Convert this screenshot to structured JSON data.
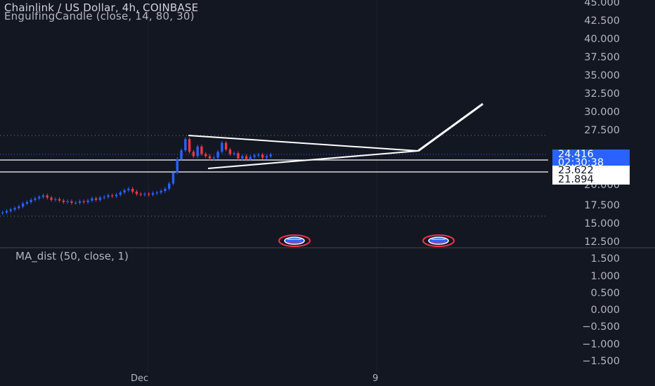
{
  "legend": {
    "title": "Chainlink / US Dollar, 4h, COINBASE",
    "indicator": "EngulfingCandle (close, 14, 80, 30)",
    "sub_indicator": "MA_dist (50, close, 1)"
  },
  "price_axis": {
    "labels": [
      "45.000",
      "42.500",
      "40.000",
      "37.500",
      "35.000",
      "32.500",
      "30.000",
      "27.500",
      "20.000",
      "17.500",
      "15.000",
      "12.500"
    ]
  },
  "sub_axis": {
    "labels": [
      "1.500",
      "1.000",
      "0.500",
      "0.000",
      "−0.500",
      "−1.000",
      "−1.500"
    ]
  },
  "price_tags": {
    "last_price": "24.416",
    "countdown": "02:30:38",
    "level_upper": "23.622",
    "level_lower": "21.894"
  },
  "time_axis": {
    "labels": [
      "Dec",
      "9"
    ]
  },
  "colors": {
    "up": "#2962ff",
    "down": "#f23645",
    "background": "#131722",
    "drawing": "#ffffff"
  },
  "icons": [
    "us-flag-event-icon",
    "us-flag-event-icon"
  ],
  "chart_data": {
    "type": "candlestick",
    "ylim": [
      12.5,
      45
    ],
    "series": [
      {
        "name": "",
        "close": [
          16.6,
          16.8,
          17.0,
          17.2,
          17.4,
          17.8,
          18.0,
          18.3,
          18.5,
          18.7,
          18.9,
          18.6,
          18.3,
          18.4,
          18.2,
          18.0,
          18.1,
          17.9,
          17.9,
          18.1,
          18.0,
          18.2,
          18.5,
          18.3,
          18.6,
          18.7,
          18.9,
          18.8,
          19.0,
          19.3,
          19.6,
          19.8,
          19.4,
          19.1,
          19.0,
          19.1,
          19.0,
          19.2,
          19.3,
          19.5,
          19.8,
          20.5,
          22.0,
          23.8,
          25.0,
          26.5,
          24.8,
          24.2,
          25.5,
          24.5,
          24.2,
          23.9,
          24.0,
          24.8,
          26.0,
          25.1,
          24.5,
          24.6,
          23.9,
          24.2,
          23.8,
          24.1,
          24.3,
          24.4,
          24.0,
          24.2,
          24.416
        ]
      }
    ]
  }
}
